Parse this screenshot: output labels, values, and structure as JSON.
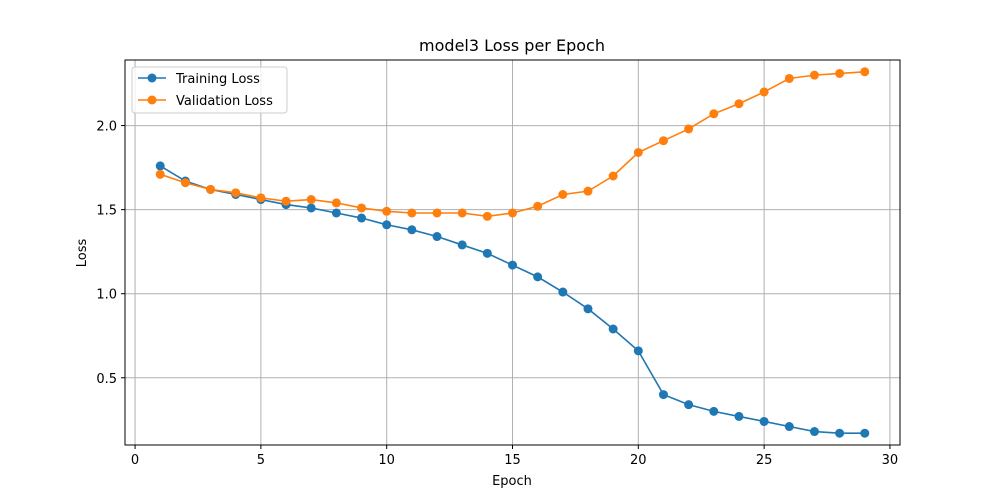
{
  "chart_data": {
    "type": "line",
    "title": "model3 Loss per Epoch",
    "xlabel": "Epoch",
    "ylabel": "Loss",
    "xlim": [
      -0.4,
      30.4
    ],
    "ylim": [
      0.1,
      2.39
    ],
    "xticks": [
      0,
      5,
      10,
      15,
      20,
      25,
      30
    ],
    "yticks": [
      0.5,
      1.0,
      1.5,
      2.0
    ],
    "xtick_labels": [
      "0",
      "5",
      "10",
      "15",
      "20",
      "25",
      "30"
    ],
    "ytick_labels": [
      "0.5",
      "1.0",
      "1.5",
      "2.0"
    ],
    "grid": true,
    "legend_position": "upper-left",
    "x": [
      1,
      2,
      3,
      4,
      5,
      6,
      7,
      8,
      9,
      10,
      11,
      12,
      13,
      14,
      15,
      16,
      17,
      18,
      19,
      20,
      21,
      22,
      23,
      24,
      25,
      26,
      27,
      28,
      29
    ],
    "series": [
      {
        "name": "Training Loss",
        "color": "#1f77b4",
        "values": [
          1.76,
          1.67,
          1.62,
          1.59,
          1.56,
          1.53,
          1.51,
          1.48,
          1.45,
          1.41,
          1.38,
          1.34,
          1.29,
          1.24,
          1.17,
          1.1,
          1.01,
          0.91,
          0.79,
          0.66,
          0.4,
          0.34,
          0.3,
          0.27,
          0.24,
          0.21,
          0.18,
          0.17,
          0.17
        ]
      },
      {
        "name": "Validation Loss",
        "color": "#ff7f0e",
        "values": [
          1.71,
          1.66,
          1.62,
          1.6,
          1.57,
          1.55,
          1.56,
          1.54,
          1.51,
          1.49,
          1.48,
          1.48,
          1.48,
          1.46,
          1.48,
          1.52,
          1.59,
          1.61,
          1.7,
          1.84,
          1.91,
          1.98,
          2.07,
          2.13,
          2.2,
          2.28,
          2.3,
          2.31,
          2.32
        ]
      }
    ]
  }
}
